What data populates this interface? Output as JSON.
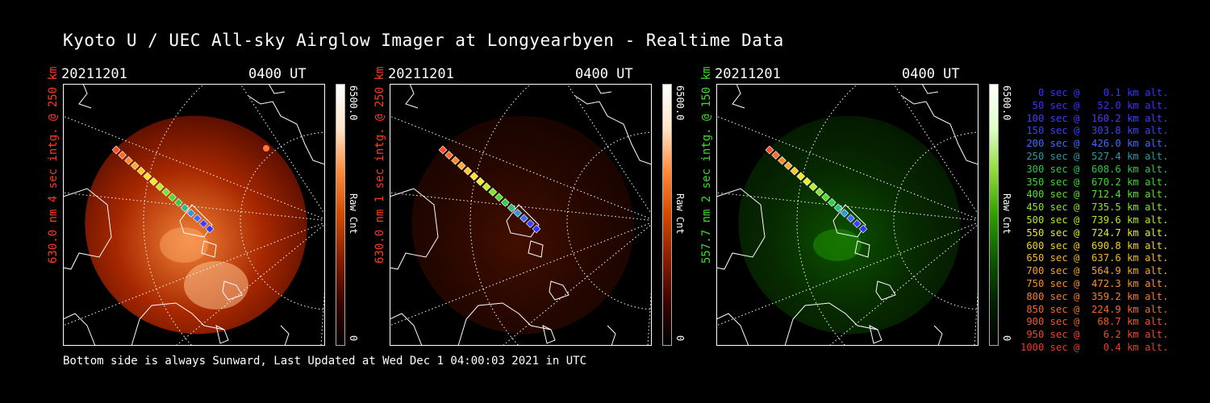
{
  "title": "Kyoto U / UEC All-sky Airglow Imager at Longyearbyen - Realtime Data",
  "footer": "Bottom side is always Sunward, Last Updated at Wed Dec  1 04:00:03 2021 in UTC",
  "panels": [
    {
      "date": "20211201",
      "time": "0400 UT",
      "ylabel": "630.0 nm  4 sec intg. @ 250 km",
      "ylabel_color": "#ff3b1f",
      "colorbar_max": "6500.0",
      "colorbar_unit": "Raw Cnt",
      "colorbar_min": "0",
      "palette": "red"
    },
    {
      "date": "20211201",
      "time": "0400 UT",
      "ylabel": "630.0 nm  1 sec intg. @ 250 km",
      "ylabel_color": "#ff3b1f",
      "colorbar_max": "6500.0",
      "colorbar_unit": "Raw Cnt",
      "colorbar_min": "0",
      "palette": "dimred"
    },
    {
      "date": "20211201",
      "time": "0400 UT",
      "ylabel": "557.7 nm  2 sec intg. @ 150 km",
      "ylabel_color": "#3ddc2b",
      "colorbar_max": "6500.0",
      "colorbar_unit": "Raw Cnt",
      "colorbar_min": "0",
      "palette": "green"
    }
  ],
  "legend": [
    {
      "text": "   0 sec @    0.1 km alt.",
      "color": "#3535ff"
    },
    {
      "text": "  50 sec @   52.0 km alt.",
      "color": "#3535ff"
    },
    {
      "text": " 100 sec @  160.2 km alt.",
      "color": "#3f3fff"
    },
    {
      "text": " 150 sec @  303.8 km alt.",
      "color": "#3f3fff"
    },
    {
      "text": " 200 sec @  426.0 km alt.",
      "color": "#3a6dff"
    },
    {
      "text": " 250 sec @  527.4 km alt.",
      "color": "#2a9aa6"
    },
    {
      "text": " 300 sec @  608.6 km alt.",
      "color": "#2fc24a"
    },
    {
      "text": " 350 sec @  670.2 km alt.",
      "color": "#3bd62a"
    },
    {
      "text": " 400 sec @  712.4 km alt.",
      "color": "#55e02a"
    },
    {
      "text": " 450 sec @  735.5 km alt.",
      "color": "#8ae52a"
    },
    {
      "text": " 500 sec @  739.6 km alt.",
      "color": "#b8e82a"
    },
    {
      "text": " 550 sec @  724.7 km alt.",
      "color": "#e6e82a"
    },
    {
      "text": " 600 sec @  690.8 km alt.",
      "color": "#f2d02a"
    },
    {
      "text": " 650 sec @  637.6 km alt.",
      "color": "#f5b52a"
    },
    {
      "text": " 700 sec @  564.9 km alt.",
      "color": "#f5a22a"
    },
    {
      "text": " 750 sec @  472.3 km alt.",
      "color": "#f5902a"
    },
    {
      "text": " 800 sec @  359.2 km alt.",
      "color": "#f57e2a"
    },
    {
      "text": " 850 sec @  224.9 km alt.",
      "color": "#f26a2a"
    },
    {
      "text": " 900 sec @   68.7 km alt.",
      "color": "#ee5a2a"
    },
    {
      "text": " 950 sec @    6.2 km alt.",
      "color": "#ec4a2a"
    },
    {
      "text": "1000 sec @    0.4 km alt.",
      "color": "#ea3a2a"
    }
  ]
}
